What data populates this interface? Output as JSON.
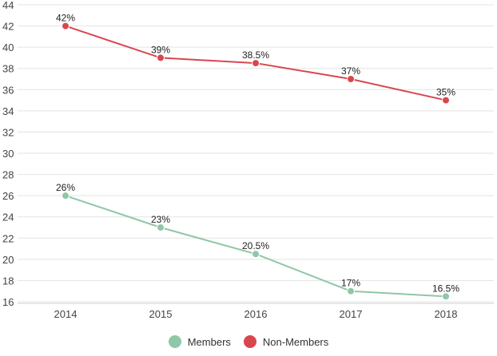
{
  "chart_data": {
    "type": "line",
    "title": "",
    "xlabel": "",
    "ylabel": "",
    "categories": [
      "2014",
      "2015",
      "2016",
      "2017",
      "2018"
    ],
    "ylim": [
      16,
      44
    ],
    "yticks": [
      "16",
      "18",
      "20",
      "22",
      "24",
      "26",
      "28",
      "30",
      "32",
      "34",
      "36",
      "38",
      "40",
      "42",
      "44"
    ],
    "grid": true,
    "legend_position": "bottom-center",
    "series": [
      {
        "name": "Members",
        "color": "#8fc7a8",
        "values": [
          26,
          23,
          20.5,
          17,
          16.5
        ],
        "labels": [
          "26%",
          "23%",
          "20.5%",
          "17%",
          "16.5%"
        ]
      },
      {
        "name": "Non-Members",
        "color": "#d9464e",
        "values": [
          42,
          39,
          38.5,
          37,
          35
        ],
        "labels": [
          "42%",
          "39%",
          "38.5%",
          "37%",
          "35%"
        ]
      }
    ]
  }
}
